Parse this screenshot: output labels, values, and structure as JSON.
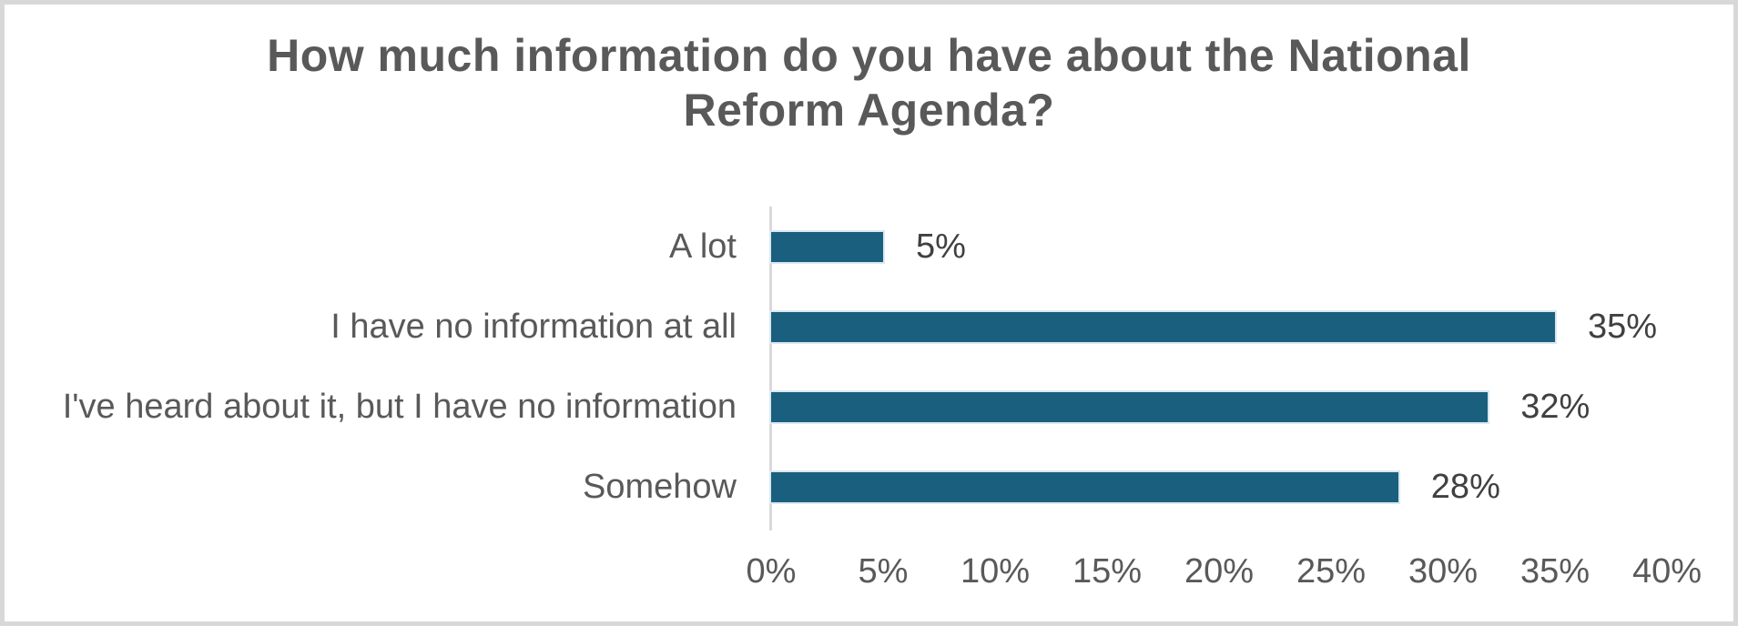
{
  "chart_data": {
    "type": "bar",
    "orientation": "horizontal",
    "title": "How much information do you have about the National Reform Agenda?",
    "title_lines": [
      "How much information do you have about the National",
      "Reform Agenda?"
    ],
    "categories": [
      "A lot",
      "I have no information at all",
      "I've heard about it, but I have no information",
      "Somehow"
    ],
    "values": [
      5,
      35,
      32,
      28
    ],
    "value_labels": [
      "5%",
      "35%",
      "32%",
      "28%"
    ],
    "xlabel": "",
    "ylabel": "",
    "xlim": [
      0,
      40
    ],
    "x_tick_labels": [
      "0%",
      "5%",
      "10%",
      "15%",
      "20%",
      "25%",
      "30%",
      "35%",
      "40%"
    ],
    "grid": false,
    "legend": false,
    "data_labels_position": "outside-end",
    "colors": {
      "bar_fill": "#1B5F7E",
      "bar_edge": "#D9E8F0",
      "axis_line": "#D9D9D9",
      "title_text": "#595959",
      "category_text": "#595959",
      "tick_text": "#595959",
      "value_label_text": "#404040",
      "frame_border": "#D8D8D8",
      "background": "#FFFFFF"
    }
  }
}
